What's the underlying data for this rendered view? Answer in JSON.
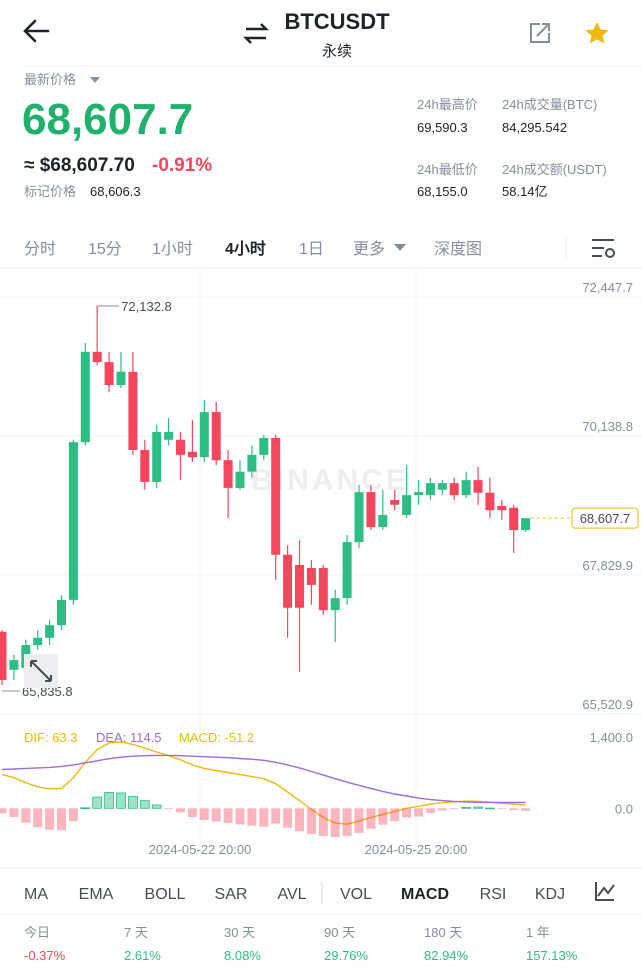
{
  "header": {
    "title": "BTCUSDT",
    "subtitle": "永续"
  },
  "ticker": {
    "last_price_label": "最新价格",
    "last_price": "68,607.7",
    "approx": "≈ $68,607.70",
    "change": "-0.91%",
    "mark_label": "标记价格",
    "mark_price": "68,606.3",
    "stats": [
      {
        "label": "24h最高价",
        "value": "69,590.3"
      },
      {
        "label": "24h成交量(BTC)",
        "value": "84,295.542"
      },
      {
        "label": "24h最低价",
        "value": "68,155.0"
      },
      {
        "label": "24h成交额(USDT)",
        "value": "58.14亿"
      }
    ]
  },
  "intervals": [
    "分时",
    "15分",
    "1小时",
    "4小时",
    "1日",
    "更多",
    "深度图"
  ],
  "chart_data": [
    {
      "type": "candlestick",
      "watermark": "BINANCE",
      "ohlc": [
        [
          66720,
          66750,
          65835.8,
          65920
        ],
        [
          66090,
          66340,
          65920,
          66250
        ],
        [
          66120,
          66590,
          66050,
          66500
        ],
        [
          66500,
          66750,
          66420,
          66620
        ],
        [
          66620,
          66920,
          66500,
          66830
        ],
        [
          66830,
          67330,
          66750,
          67250
        ],
        [
          67250,
          69910,
          67170,
          69870
        ],
        [
          69870,
          71520,
          69820,
          71370
        ],
        [
          71370,
          72132.8,
          71150,
          71200
        ],
        [
          71200,
          71370,
          70700,
          70820
        ],
        [
          70820,
          71370,
          70770,
          71040
        ],
        [
          71040,
          71370,
          69660,
          69740
        ],
        [
          69740,
          69910,
          69080,
          69210
        ],
        [
          69210,
          70160,
          69110,
          70040
        ],
        [
          69910,
          70270,
          69820,
          70040
        ],
        [
          69910,
          70040,
          69240,
          69660
        ],
        [
          69710,
          70240,
          69540,
          69620
        ],
        [
          69620,
          70570,
          69540,
          70370
        ],
        [
          70370,
          70540,
          69490,
          69570
        ],
        [
          69570,
          69740,
          68610,
          69110
        ],
        [
          69110,
          69570,
          69080,
          69380
        ],
        [
          69380,
          69820,
          69280,
          69660
        ],
        [
          69660,
          69990,
          69570,
          69940
        ],
        [
          69940,
          69990,
          67580,
          68000
        ],
        [
          68000,
          68160,
          66620,
          67120
        ],
        [
          67830,
          68250,
          66050,
          67120
        ],
        [
          67780,
          67910,
          67170,
          67500
        ],
        [
          67780,
          67830,
          67000,
          67080
        ],
        [
          67080,
          67420,
          66550,
          67280
        ],
        [
          67280,
          68330,
          67170,
          68210
        ],
        [
          68210,
          69160,
          68110,
          69040
        ],
        [
          69040,
          69160,
          68410,
          68460
        ],
        [
          68460,
          69080,
          68410,
          68660
        ],
        [
          68910,
          69080,
          68740,
          68830
        ],
        [
          68660,
          69490,
          68610,
          68990
        ],
        [
          68990,
          69240,
          68830,
          69040
        ],
        [
          68990,
          69280,
          68910,
          69190
        ],
        [
          69080,
          69240,
          68990,
          69190
        ],
        [
          69190,
          69280,
          68910,
          68990
        ],
        [
          68990,
          69380,
          68940,
          69240
        ],
        [
          69240,
          69460,
          68830,
          69030
        ],
        [
          69030,
          69280,
          68610,
          68740
        ],
        [
          68810,
          68910,
          68580,
          68740
        ],
        [
          68780,
          68830,
          68030,
          68410
        ],
        [
          68410,
          68550,
          68380,
          68607.7
        ]
      ],
      "high_label": "72,132.8",
      "low_label": "65,835.8",
      "last_label": "68,607.7",
      "colors": {
        "up": "#2ebd85",
        "down": "#f6465d"
      },
      "ylim": [
        65520.9,
        72447.7
      ],
      "yticks": [
        {
          "value": 72447.7,
          "label": "72,447.7"
        },
        {
          "value": 70138.8,
          "label": "70,138.8"
        },
        {
          "value": 67829.9,
          "label": "67,829.9"
        },
        {
          "value": 65520.9,
          "label": "65,520.9"
        }
      ],
      "x_labels": [
        "2024-05-22 20:00",
        "2024-05-25 20:00"
      ]
    },
    {
      "type": "macd",
      "ylim": [
        -620,
        1630
      ],
      "yticks": [
        {
          "value": 1400,
          "label": "1,400.0"
        },
        {
          "value": 0,
          "label": "0.0"
        }
      ],
      "series": [
        {
          "name": "DIF",
          "value_label": "63.3",
          "color": "#f0b90b",
          "values": [
            660,
            600,
            500,
            420,
            380,
            390,
            600,
            900,
            1150,
            1280,
            1300,
            1250,
            1180,
            1100,
            1030,
            950,
            850,
            780,
            740,
            700,
            660,
            620,
            580,
            480,
            320,
            150,
            -20,
            -180,
            -290,
            -310,
            -250,
            -180,
            -120,
            -60,
            0,
            40,
            80,
            110,
            130,
            140,
            140,
            120,
            100,
            80,
            63.3
          ]
        },
        {
          "name": "DEA",
          "value_label": "114.5",
          "color": "#a06ad8",
          "values": [
            760,
            770,
            780,
            790,
            800,
            820,
            850,
            890,
            930,
            970,
            1000,
            1020,
            1030,
            1035,
            1035,
            1030,
            1020,
            1010,
            1000,
            990,
            975,
            960,
            940,
            900,
            850,
            790,
            720,
            650,
            580,
            510,
            450,
            390,
            330,
            280,
            240,
            200,
            170,
            150,
            135,
            125,
            118,
            115,
            114,
            114,
            114.5
          ]
        },
        {
          "name": "MACD",
          "value_label": "-51.2",
          "color": "#f0b90b",
          "values": [
            -100,
            -170,
            -280,
            -370,
            -420,
            -430,
            -250,
            10,
            220,
            310,
            300,
            230,
            150,
            65,
            -5,
            -80,
            -170,
            -230,
            -260,
            -290,
            -315,
            -340,
            -360,
            -300,
            -380,
            -450,
            -500,
            -540,
            -560,
            -540,
            -480,
            -400,
            -320,
            -250,
            -180,
            -160,
            -90,
            -40,
            -5,
            15,
            25,
            5,
            -14,
            -34,
            -51.2
          ]
        }
      ]
    }
  ],
  "indicators": [
    "MA",
    "EMA",
    "BOLL",
    "SAR",
    "AVL",
    "VOL",
    "MACD",
    "RSI",
    "KDJ"
  ],
  "performance": [
    {
      "label": "今日",
      "value": "-0.37%"
    },
    {
      "label": "7 天",
      "value": "2.61%"
    },
    {
      "label": "30 天",
      "value": "8.08%"
    },
    {
      "label": "90 天",
      "value": "29.76%"
    },
    {
      "label": "180 天",
      "value": "82.94%"
    },
    {
      "label": "1 年",
      "value": "157.13%"
    }
  ]
}
